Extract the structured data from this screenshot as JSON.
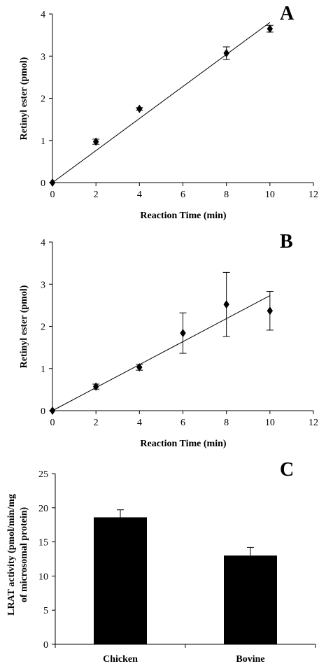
{
  "chart_data": [
    {
      "panel": "A",
      "type": "scatter",
      "xlabel": "Reaction Time (min)",
      "ylabel": "Retinyl ester (pmol)",
      "xlim": [
        0,
        12
      ],
      "ylim": [
        0,
        4
      ],
      "x_ticks": [
        "0",
        "2",
        "4",
        "6",
        "8",
        "10",
        "12"
      ],
      "y_ticks": [
        "0",
        "1",
        "2",
        "3",
        "4"
      ],
      "points": [
        {
          "x": 0,
          "y": 0,
          "err": 0
        },
        {
          "x": 2,
          "y": 0.97,
          "err": 0.06
        },
        {
          "x": 4,
          "y": 1.75,
          "err": 0.03
        },
        {
          "x": 8,
          "y": 3.07,
          "err": 0.15
        },
        {
          "x": 10,
          "y": 3.65,
          "err": 0.08
        }
      ],
      "trendline": {
        "x": [
          0,
          10
        ],
        "y": [
          0,
          3.8
        ]
      },
      "grid": false
    },
    {
      "panel": "B",
      "type": "scatter",
      "xlabel": "Reaction Time (min)",
      "ylabel": "Retinyl ester (pmol)",
      "xlim": [
        0,
        12
      ],
      "ylim": [
        0,
        4
      ],
      "x_ticks": [
        "0",
        "2",
        "4",
        "6",
        "8",
        "10",
        "12"
      ],
      "y_ticks": [
        "0",
        "1",
        "2",
        "3",
        "4"
      ],
      "points": [
        {
          "x": 0,
          "y": 0,
          "err": 0
        },
        {
          "x": 2,
          "y": 0.57,
          "err": 0.06
        },
        {
          "x": 4,
          "y": 1.03,
          "err": 0.07
        },
        {
          "x": 6,
          "y": 1.84,
          "err": 0.48
        },
        {
          "x": 8,
          "y": 2.52,
          "err": 0.76
        },
        {
          "x": 10,
          "y": 2.37,
          "err": 0.46
        }
      ],
      "trendline": {
        "x": [
          0,
          10
        ],
        "y": [
          0,
          2.73
        ]
      },
      "grid": false
    },
    {
      "panel": "C",
      "type": "bar",
      "ylabel_line1": "LRAT activity (pmol/min/mg",
      "ylabel_line2": "of microsomal protein)",
      "ylim": [
        0,
        25
      ],
      "y_ticks": [
        "0",
        "5",
        "10",
        "15",
        "20",
        "25"
      ],
      "categories": [
        "Chicken",
        "Bovine"
      ],
      "values": [
        18.6,
        13.0
      ],
      "errors": [
        1.1,
        1.2
      ],
      "bar_color": "#000000",
      "grid": false
    }
  ]
}
